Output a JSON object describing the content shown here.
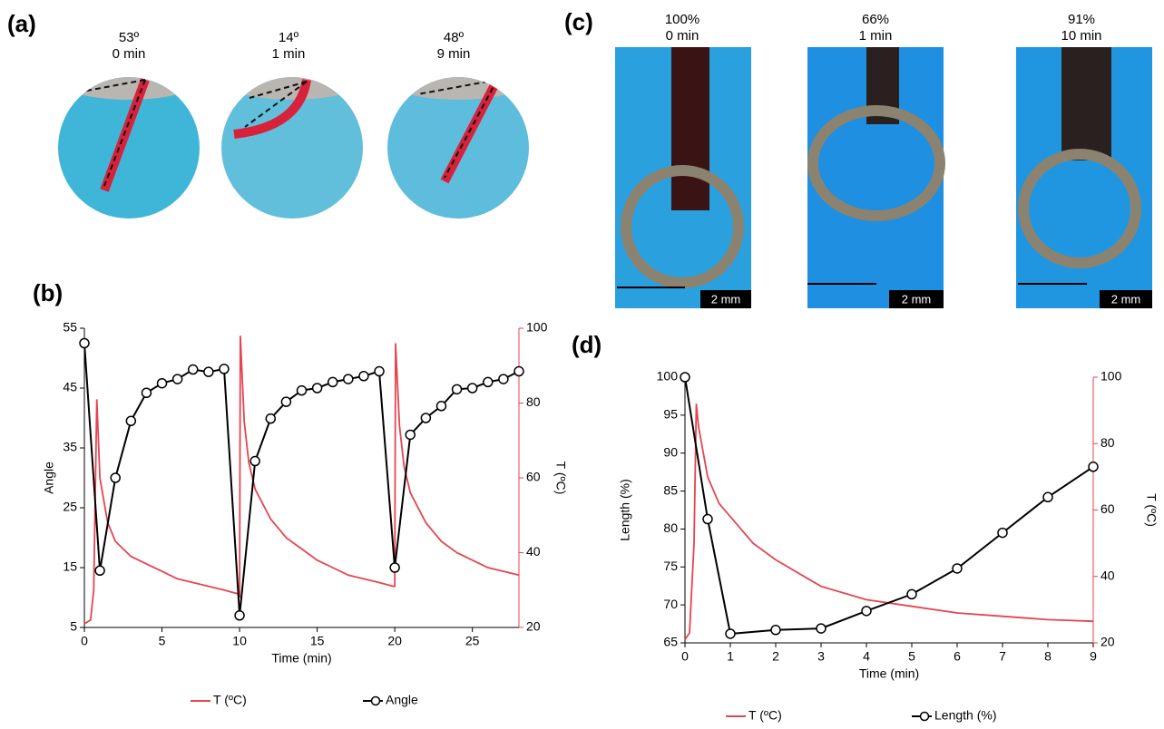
{
  "panels": {
    "a": "(a)",
    "b": "(b)",
    "c": "(c)",
    "d": "(d)"
  },
  "photos_a": [
    {
      "angle": "53º",
      "time": "0 min"
    },
    {
      "angle": "14º",
      "time": "1 min"
    },
    {
      "angle": "48º",
      "time": "9 min"
    }
  ],
  "photos_c": [
    {
      "length": "100%",
      "time": "0 min",
      "scale": "2 mm"
    },
    {
      "length": "66%",
      "time": "1 min",
      "scale": "2 mm"
    },
    {
      "length": "91%",
      "time": "10 min",
      "scale": "2 mm"
    }
  ],
  "chart_data": [
    {
      "type": "line",
      "xlabel": "Time (min)",
      "ylabel": "Angle",
      "y2label": "T (ºC)",
      "xlim": [
        0,
        28
      ],
      "xticks": [
        0,
        5,
        10,
        15,
        20,
        25
      ],
      "ylim": [
        5,
        55
      ],
      "yticks": [
        5,
        15,
        25,
        35,
        45,
        55
      ],
      "y2lim": [
        20,
        100
      ],
      "y2ticks": [
        20,
        40,
        60,
        80,
        100
      ],
      "series": [
        {
          "name": "T (ºC)",
          "color": "#e4454f",
          "axis": "y2",
          "x": [
            0,
            0.4,
            0.6,
            0.8,
            1,
            1.5,
            2,
            3,
            4,
            5,
            6,
            7,
            8,
            9,
            9.9,
            10,
            10.05,
            10.3,
            10.6,
            11,
            12,
            13,
            14,
            15,
            16,
            17,
            18,
            19,
            19.9,
            20,
            20.05,
            20.3,
            20.6,
            21,
            22,
            23,
            24,
            25,
            26,
            27,
            28
          ],
          "values": [
            21,
            22,
            30,
            81,
            60,
            48,
            43,
            39,
            37,
            35,
            33,
            32,
            31,
            30,
            29,
            28,
            98,
            75,
            64,
            57,
            49,
            44,
            41,
            38,
            36,
            34,
            33,
            32,
            31,
            31,
            96,
            74,
            63,
            56,
            48,
            43,
            40,
            38,
            36,
            35,
            34
          ]
        },
        {
          "name": "Angle",
          "color": "#000000",
          "marker": "o",
          "x": [
            0,
            1,
            2,
            3,
            4,
            5,
            6,
            7,
            8,
            9,
            10,
            11,
            12,
            13,
            14,
            15,
            16,
            17,
            18,
            19,
            20,
            21,
            22,
            23,
            24,
            25,
            26,
            27,
            28
          ],
          "values": [
            52.5,
            14.5,
            30,
            39.5,
            44.2,
            45.8,
            46.5,
            48.1,
            47.7,
            48.2,
            7,
            32.8,
            39.9,
            42.7,
            44.6,
            45,
            46,
            46.5,
            47,
            47.8,
            15,
            37.2,
            40,
            42,
            44.8,
            45,
            46,
            46.5,
            47.8
          ]
        }
      ]
    },
    {
      "type": "line",
      "xlabel": "Time (min)",
      "ylabel": "Length (%)",
      "y2label": "T (ºC)",
      "xlim": [
        0,
        9
      ],
      "xticks": [
        0,
        1,
        2,
        3,
        4,
        5,
        6,
        7,
        8,
        9
      ],
      "ylim": [
        65,
        100
      ],
      "yticks": [
        65,
        70,
        75,
        80,
        85,
        90,
        95,
        100
      ],
      "y2lim": [
        20,
        100
      ],
      "y2ticks": [
        20,
        40,
        60,
        80,
        100
      ],
      "series": [
        {
          "name": "T (ºC)",
          "color": "#e4454f",
          "axis": "y2",
          "x": [
            0,
            0.1,
            0.2,
            0.25,
            0.3,
            0.5,
            0.75,
            1,
            1.5,
            2,
            3,
            4,
            5,
            6,
            7,
            8,
            9
          ],
          "values": [
            21,
            23,
            50,
            92,
            85,
            70,
            62,
            58,
            50,
            45,
            37,
            33,
            31,
            29,
            28,
            27,
            26.5
          ]
        },
        {
          "name": "Length (%)",
          "color": "#000000",
          "marker": "o",
          "x": [
            0,
            0.5,
            1,
            2,
            3,
            4,
            5,
            6,
            7,
            8,
            9
          ],
          "values": [
            100,
            81.3,
            66.2,
            66.7,
            66.9,
            69.2,
            71.4,
            74.8,
            79.5,
            84.2,
            88.2
          ]
        }
      ]
    }
  ]
}
